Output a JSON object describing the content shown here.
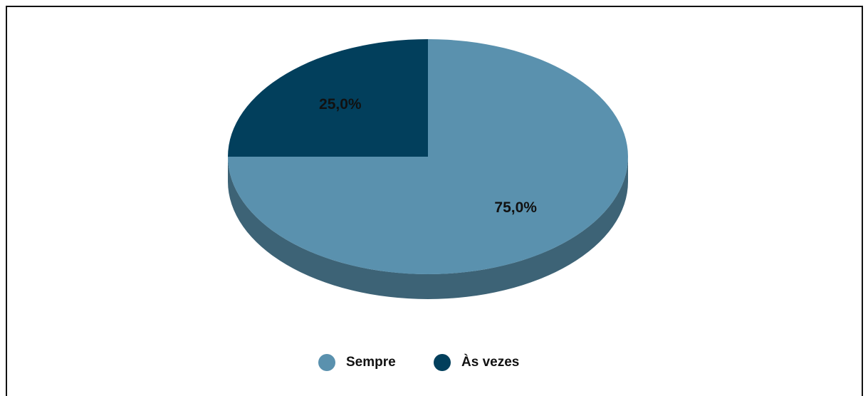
{
  "chart_data": {
    "type": "pie",
    "categories": [
      "Sempre",
      "Às vezes"
    ],
    "values": [
      75,
      25
    ],
    "value_labels": [
      "75,0%",
      "25,0%"
    ],
    "colors": [
      "#5a91ae",
      "#023f5c"
    ],
    "legend": "bottom"
  }
}
